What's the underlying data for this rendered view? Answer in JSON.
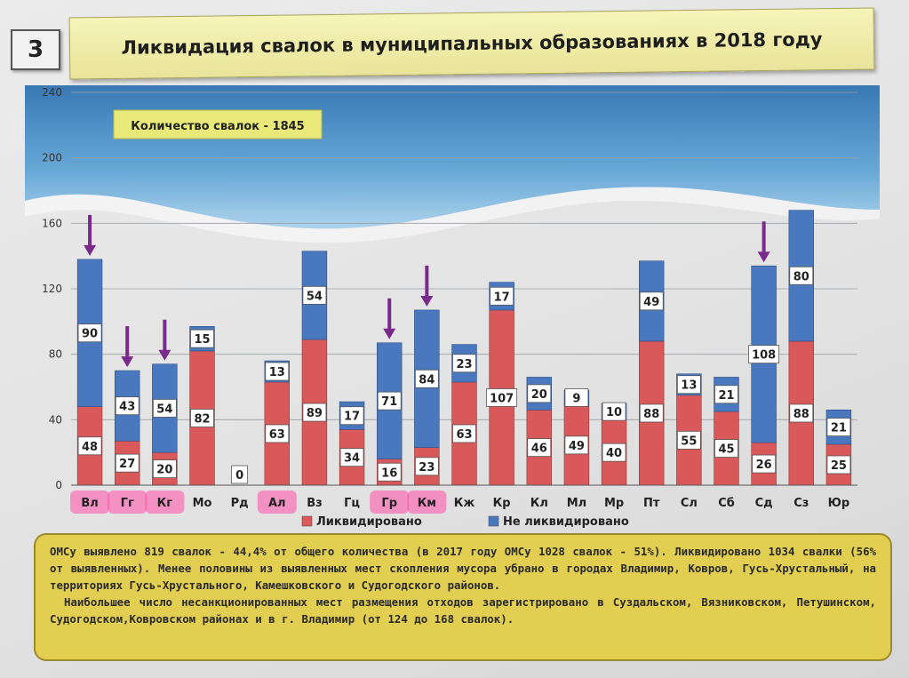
{
  "slide_number": "3",
  "title": "Ликвидация свалок в муниципальных образованиях в 2018 году",
  "total_label": "Количество свалок - 1845",
  "colors": {
    "liquidated": "#d9585a",
    "not_liquidated": "#4a78be",
    "title_bg": "#f2f0a8",
    "info_bg": "#e2cf52",
    "arrow": "#7a2a8a",
    "highlight": "#ff4fa8"
  },
  "chart_data": {
    "type": "bar",
    "stacked": true,
    "categories": [
      "Вл",
      "Гг",
      "Кг",
      "Мо",
      "Рд",
      "Ал",
      "Вз",
      "Гц",
      "Гр",
      "Км",
      "Кж",
      "Кр",
      "Кл",
      "Мл",
      "Мр",
      "Пт",
      "Сл",
      "Сб",
      "Сд",
      "Сз",
      "Юр"
    ],
    "series": [
      {
        "name": "Ликвидировано",
        "values": [
          48,
          27,
          20,
          82,
          0,
          63,
          89,
          34,
          16,
          23,
          63,
          107,
          46,
          49,
          40,
          88,
          55,
          45,
          26,
          88,
          25
        ]
      },
      {
        "name": "Не ликвидировано",
        "values": [
          90,
          43,
          54,
          15,
          0,
          13,
          54,
          17,
          71,
          84,
          23,
          17,
          20,
          9,
          10,
          49,
          13,
          21,
          108,
          80,
          21
        ]
      }
    ],
    "ylim": [
      0,
      240
    ],
    "yticks": [
      "0",
      "40",
      "80",
      "120",
      "160",
      "200",
      "240"
    ],
    "grid": true,
    "legend_position": "bottom",
    "highlighted_categories": [
      "Вл",
      "Гг",
      "Кг",
      "Ал",
      "Гр",
      "Км"
    ],
    "arrow_categories": [
      "Вл",
      "Гг",
      "Кг",
      "Гр",
      "Км",
      "Сд"
    ]
  },
  "info": {
    "p1": "ОМСу выявлено 819 свалок - 44,4% от общего количества (в 2017 году ОМСу 1028 свалок - 51%). Ликвидировано 1034 свалки (56% от выявленных). Менее половины из выявленных мест скопления мусора убрано в городах Владимир, Ковров, Гусь-Хрустальный, на территориях Гусь-Хрустального, Камешковского и Судогодского районов.",
    "p2": "Наибольшее число несанкционированных мест размещения отходов зарегистрировано в Суздальском, Вязниковском, Петушинском, Судогодском,Ковровском районах и в г. Владимир (от 124 до 168 свалок)."
  }
}
